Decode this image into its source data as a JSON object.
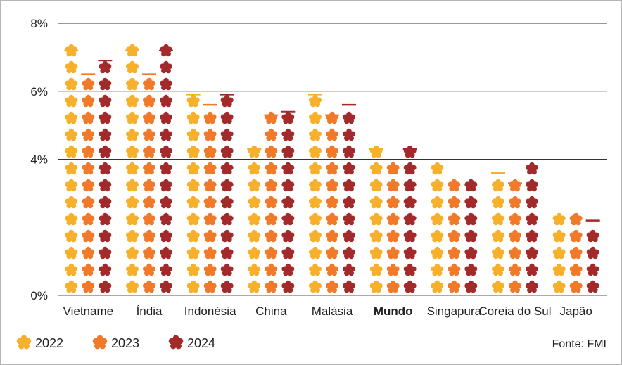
{
  "chart_data": {
    "type": "bar",
    "title": "",
    "xlabel": "",
    "ylabel": "",
    "ylim": [
      0,
      8
    ],
    "y_ticks": [
      0,
      4,
      6,
      8
    ],
    "y_tick_labels": [
      "0%",
      "4%",
      "6%",
      "8%"
    ],
    "grid": true,
    "legend_position": "bottom-left",
    "categories": [
      "Vietname",
      "Índia",
      "Indonésia",
      "China",
      "Malásia",
      "Mundo",
      "Singapura",
      "Coreia do Sul",
      "Japão"
    ],
    "highlight_category": "Mundo",
    "series": [
      {
        "name": "2022",
        "color": "#f7b02b",
        "values": [
          7.2,
          7.2,
          5.9,
          4.3,
          5.9,
          4.3,
          4.0,
          3.6,
          2.5
        ]
      },
      {
        "name": "2023",
        "color": "#f07a2a",
        "values": [
          6.5,
          6.5,
          5.6,
          5.3,
          5.3,
          4.0,
          3.5,
          3.3,
          2.5
        ]
      },
      {
        "name": "2024",
        "color": "#a32a2a",
        "values": [
          6.9,
          7.2,
          5.9,
          5.4,
          5.6,
          4.3,
          3.5,
          4.0,
          2.2
        ]
      }
    ],
    "source": "Fonte: FMI"
  },
  "icon": "flower-icon"
}
